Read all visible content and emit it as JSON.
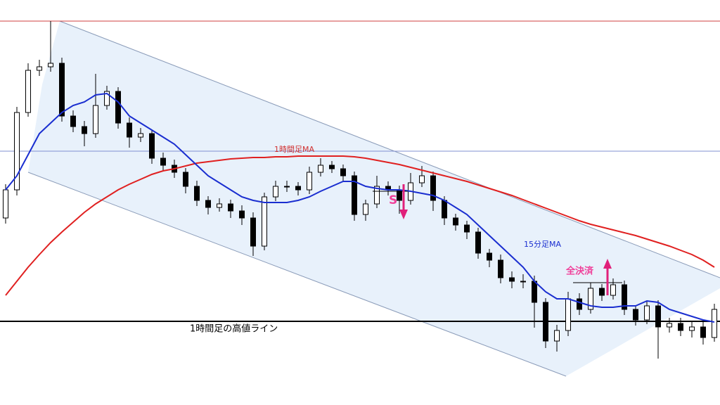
{
  "chart_data": {
    "type": "candlestick",
    "ylim": [
      0,
      576
    ],
    "open": [
      266,
      306,
      416,
      476,
      481,
      486,
      411,
      396,
      386,
      426,
      446,
      401,
      381,
      386,
      351,
      341,
      331,
      311,
      291,
      281,
      286,
      276,
      266,
      226,
      296,
      311,
      311,
      306,
      331,
      341,
      336,
      326,
      271,
      286,
      311,
      306,
      291,
      316,
      326,
      291,
      266,
      256,
      246,
      216,
      206,
      181,
      176,
      176,
      146,
      91,
      106,
      151,
      136,
      166,
      156,
      171,
      136,
      121,
      141,
      111,
      116,
      106,
      111,
      96
    ],
    "high": [
      314,
      424,
      486,
      491,
      546,
      494,
      419,
      404,
      471,
      454,
      452,
      409,
      394,
      392,
      359,
      349,
      337,
      319,
      297,
      294,
      292,
      284,
      274,
      302,
      319,
      319,
      317,
      339,
      351,
      347,
      342,
      332,
      292,
      326,
      318,
      312,
      330,
      340,
      332,
      297,
      272,
      262,
      252,
      222,
      214,
      190,
      186,
      184,
      152,
      114,
      161,
      159,
      174,
      172,
      180,
      177,
      142,
      147,
      149,
      124,
      124,
      119,
      119,
      144
    ],
    "low": [
      258,
      298,
      410,
      468,
      474,
      403,
      388,
      368,
      380,
      420,
      393,
      366,
      374,
      343,
      333,
      323,
      301,
      283,
      271,
      275,
      266,
      256,
      212,
      220,
      290,
      303,
      298,
      300,
      325,
      330,
      318,
      262,
      262,
      280,
      298,
      272,
      285,
      310,
      276,
      256,
      248,
      236,
      208,
      196,
      173,
      166,
      166,
      110,
      81,
      76,
      98,
      128,
      130,
      148,
      150,
      128,
      113,
      115,
      66,
      103,
      98,
      96,
      86,
      90
    ],
    "close": [
      306,
      416,
      476,
      481,
      486,
      411,
      396,
      386,
      426,
      446,
      401,
      381,
      386,
      351,
      341,
      331,
      311,
      291,
      281,
      286,
      276,
      266,
      226,
      296,
      311,
      311,
      306,
      331,
      341,
      336,
      326,
      271,
      286,
      311,
      306,
      291,
      316,
      326,
      291,
      266,
      256,
      246,
      216,
      206,
      181,
      176,
      176,
      146,
      91,
      106,
      151,
      136,
      166,
      156,
      171,
      136,
      121,
      141,
      111,
      116,
      106,
      111,
      96,
      136
    ],
    "up_color": "#ffffff",
    "down_color": "#000000",
    "series": [
      {
        "name": "1時間足MA",
        "color": "#e02020",
        "values": [
          156,
          176,
          196,
          214,
          231,
          246,
          260,
          274,
          286,
          296,
          306,
          314,
          321,
          328,
          333,
          336,
          340,
          344,
          346,
          348,
          350,
          351,
          352,
          352,
          353,
          353,
          354,
          354,
          354,
          354,
          354,
          353,
          351,
          348,
          345,
          342,
          338,
          334,
          330,
          326,
          322,
          318,
          313,
          308,
          303,
          298,
          292,
          286,
          280,
          274,
          268,
          262,
          257,
          253,
          249,
          245,
          241,
          236,
          231,
          226,
          220,
          214,
          206,
          196
        ]
      },
      {
        "name": "15分足MA",
        "color": "#1a2ed0",
        "values": [
          306,
          326,
          356,
          386,
          401,
          416,
          426,
          431,
          441,
          443,
          431,
          411,
          401,
          391,
          381,
          371,
          356,
          341,
          326,
          316,
          306,
          296,
          291,
          288,
          288,
          288,
          291,
          296,
          304,
          311,
          318,
          318,
          311,
          308,
          306,
          306,
          304,
          301,
          298,
          291,
          281,
          271,
          256,
          241,
          226,
          211,
          196,
          176,
          161,
          151,
          151,
          146,
          141,
          139,
          139,
          141,
          141,
          148,
          146,
          136,
          131,
          126,
          121,
          118
        ]
      }
    ],
    "hlines": [
      {
        "value": 546,
        "color": "#d04040"
      },
      {
        "value": 361,
        "color": "#8090d0"
      },
      {
        "value": 119,
        "color": "#000000",
        "label": "1時間足の高値ライン"
      }
    ],
    "annotations": [
      {
        "text": "S",
        "color": "#f0409a"
      },
      {
        "text": "全決済",
        "color": "#f0409a"
      }
    ]
  }
}
